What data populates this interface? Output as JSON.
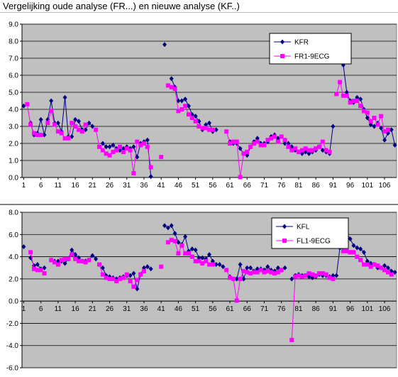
{
  "title": "Vergelijking oude analyse (FR...) en nieuwe analyse (KF..)",
  "chart_data": [
    {
      "type": "line",
      "title": "",
      "xlabel": "",
      "ylabel": "",
      "ylim": [
        0,
        9
      ],
      "yticks": [
        "0.0",
        "1.0",
        "2.0",
        "3.0",
        "4.0",
        "5.0",
        "6.0",
        "7.0",
        "8.0",
        "9.0"
      ],
      "xticks": [
        "1",
        "6",
        "11",
        "16",
        "21",
        "26",
        "31",
        "36",
        "41",
        "46",
        "51",
        "56",
        "61",
        "66",
        "71",
        "76",
        "81",
        "86",
        "91",
        "96",
        "101",
        "106"
      ],
      "x_count": 109,
      "grid": true,
      "legend_position": "top-right",
      "series": [
        {
          "name": "KFR",
          "color": "#000080",
          "marker": "diamond",
          "values": [
            4.2,
            null,
            3.2,
            2.5,
            2.6,
            3.4,
            2.5,
            3.4,
            4.5,
            3.2,
            3.2,
            2.7,
            4.7,
            2.4,
            2.4,
            3.4,
            3.3,
            2.8,
            2.8,
            3.2,
            3.0,
            null,
            null,
            2.0,
            1.8,
            1.8,
            1.9,
            1.7,
            1.6,
            1.7,
            1.8,
            1.7,
            1.8,
            1.2,
            2.0,
            2.1,
            2.2,
            0.05,
            null,
            null,
            null,
            7.8,
            null,
            5.8,
            5.3,
            4.5,
            4.5,
            4.6,
            4.2,
            3.7,
            3.6,
            3.3,
            2.8,
            3.1,
            3.2,
            2.7,
            2.8,
            null,
            null,
            null,
            2.1,
            2.0,
            2.0,
            1.7,
            1.4,
            1.3,
            1.8,
            2.1,
            2.3,
            2.0,
            2.0,
            2.1,
            2.4,
            2.5,
            2.3,
            null,
            2.0,
            2.0,
            1.8,
            1.6,
            1.5,
            1.4,
            1.5,
            1.4,
            1.5,
            1.6,
            1.8,
            1.6,
            1.5,
            1.4,
            3.0,
            null,
            null,
            6.6,
            5.0,
            4.5,
            4.4,
            4.7,
            4.6,
            4.0,
            3.5,
            3.1,
            3.0,
            3.2,
            2.9,
            2.2,
            2.6,
            2.8,
            1.9
          ]
        },
        {
          "name": "FR1-9ECG",
          "color": "#ff00ff",
          "marker": "square",
          "values": [
            null,
            4.3,
            3.1,
            2.6,
            2.5,
            2.5,
            null,
            3.2,
            3.9,
            3.1,
            2.7,
            2.6,
            2.3,
            2.3,
            3.2,
            3.0,
            2.8,
            2.7,
            3.1,
            null,
            null,
            2.8,
            1.8,
            1.6,
            1.4,
            1.3,
            1.5,
            1.6,
            1.8,
            1.5,
            1.7,
            1.6,
            0.25,
            2.1,
            1.9,
            2.0,
            1.8,
            0.6,
            null,
            null,
            1.2,
            null,
            5.4,
            5.3,
            5.2,
            3.9,
            4.0,
            4.2,
            3.7,
            3.5,
            3.3,
            3.0,
            2.9,
            2.9,
            2.8,
            2.8,
            null,
            null,
            null,
            2.7,
            2.0,
            2.1,
            2.1,
            0.02,
            1.4,
            1.5,
            1.8,
            2.0,
            2.1,
            1.9,
            1.9,
            2.2,
            2.3,
            2.4,
            2.1,
            2.4,
            2.2,
            1.8,
            1.6,
            1.7,
            1.5,
            1.6,
            1.7,
            1.6,
            1.6,
            1.7,
            1.8,
            2.1,
            1.6,
            1.5,
            null,
            4.9,
            5.6,
            4.8,
            4.8,
            4.4,
            4.5,
            4.5,
            4.2,
            3.9,
            3.8,
            3.3,
            3.5,
            3.1,
            3.6,
            2.7,
            2.8,
            null,
            null
          ]
        }
      ]
    },
    {
      "type": "line",
      "title": "",
      "xlabel": "",
      "ylabel": "",
      "ylim": [
        -6,
        8
      ],
      "yticks": [
        "-6.0",
        "-4.0",
        "-2.0",
        "0.0",
        "2.0",
        "4.0",
        "6.0",
        "8.0"
      ],
      "xticks": [
        "1",
        "6",
        "11",
        "16",
        "21",
        "26",
        "31",
        "36",
        "41",
        "46",
        "51",
        "56",
        "61",
        "66",
        "71",
        "76",
        "81",
        "86",
        "91",
        "96",
        "101",
        "106"
      ],
      "x_count": 109,
      "grid": true,
      "legend_position": "top-right",
      "series": [
        {
          "name": "KFL",
          "color": "#000080",
          "marker": "diamond",
          "values": [
            4.9,
            null,
            3.9,
            3.2,
            3.3,
            2.9,
            3.0,
            null,
            3.7,
            3.6,
            3.6,
            3.6,
            3.4,
            3.8,
            4.6,
            4.2,
            3.9,
            3.6,
            3.6,
            3.7,
            4.1,
            3.8,
            null,
            3.0,
            2.3,
            2.2,
            2.1,
            2.0,
            2.1,
            2.2,
            2.3,
            2.3,
            2.5,
            1.1,
            2.4,
            3.0,
            3.1,
            2.9,
            null,
            null,
            null,
            6.8,
            6.6,
            6.8,
            6.1,
            5.3,
            5.1,
            5.8,
            4.5,
            4.7,
            4.6,
            3.9,
            3.9,
            3.8,
            4.2,
            3.6,
            3.3,
            3.3,
            3.1,
            null,
            2.2,
            2.0,
            2.0,
            3.3,
            2.0,
            3.0,
            3.0,
            2.7,
            2.9,
            2.9,
            2.8,
            3.1,
            2.8,
            2.7,
            3.0,
            2.8,
            3.0,
            null,
            2.0,
            2.3,
            2.4,
            2.3,
            2.3,
            2.2,
            2.1,
            2.2,
            2.4,
            2.3,
            2.3,
            2.2,
            2.3,
            2.3,
            4.8,
            null,
            6.1,
            5.6,
            5.0,
            4.8,
            4.7,
            4.4,
            3.6,
            3.4,
            3.3,
            3.0,
            3.0,
            3.2,
            3.0,
            2.7,
            2.6
          ]
        },
        {
          "name": "FL1-9ECG",
          "color": "#ff00ff",
          "marker": "square",
          "values": [
            null,
            null,
            4.4,
            2.9,
            2.8,
            2.8,
            2.5,
            null,
            3.7,
            3.5,
            3.3,
            3.7,
            3.8,
            3.8,
            4.2,
            3.8,
            3.6,
            3.6,
            3.5,
            3.7,
            null,
            null,
            3.3,
            2.4,
            2.1,
            2.0,
            2.0,
            1.8,
            2.0,
            2.1,
            2.4,
            1.8,
            1.3,
            1.9,
            2.4,
            2.7,
            null,
            null,
            null,
            null,
            3.1,
            null,
            5.3,
            5.5,
            5.4,
            4.3,
            5.0,
            4.3,
            4.3,
            4.0,
            3.6,
            3.6,
            3.4,
            3.6,
            3.3,
            3.3,
            null,
            null,
            null,
            2.8,
            2.1,
            2.0,
            0.05,
            2.0,
            2.7,
            2.6,
            2.5,
            2.6,
            2.6,
            2.8,
            2.6,
            2.7,
            2.6,
            2.5,
            2.6,
            2.8,
            null,
            null,
            -3.5,
            2.2,
            2.3,
            2.2,
            2.3,
            2.5,
            2.4,
            2.3,
            2.5,
            2.5,
            2.4,
            2.1,
            2.0,
            null,
            6.1,
            4.5,
            4.5,
            4.4,
            4.4,
            4.0,
            3.7,
            3.3,
            3.3,
            3.1,
            3.3,
            3.2,
            3.0,
            2.8,
            2.6,
            2.4,
            null
          ]
        }
      ]
    }
  ]
}
